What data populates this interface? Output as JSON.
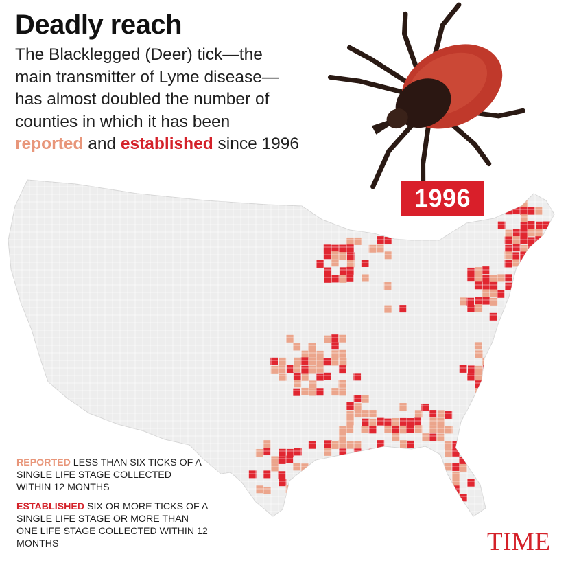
{
  "header": {
    "title": "Deadly reach",
    "subtitle_lines": [
      "The Blacklegged (Deer) tick—the",
      "main transmitter of Lyme disease—",
      "has almost doubled the number of",
      "counties in which it has been"
    ],
    "subtitle_reported": "reported",
    "subtitle_and": " and ",
    "subtitle_established": "established",
    "subtitle_end": " since 1996"
  },
  "map": {
    "year": "1996",
    "region": "Contiguous United States, county-level"
  },
  "legend": {
    "reported": {
      "key": "REPORTED",
      "text": " LESS THAN SIX TICKS OF A SINGLE LIFE STAGE COLLECTED WITHIN 12 MONTHS"
    },
    "established": {
      "key": "ESTABLISHED",
      "text": " SIX OR MORE TICKS OF A SINGLE LIFE STAGE OR MORE THAN ONE LIFE STAGE COLLECTED WITHIN 12 MONTHS"
    }
  },
  "brand": {
    "logo": "TIME"
  },
  "colors": {
    "background": "#ffffff",
    "no_data": "#ededed",
    "reported": "#eba58c",
    "established": "#e02630",
    "badge": "#d91f2a",
    "logo": "#d42129"
  },
  "icons": {
    "tick_illustration": "blacklegged-tick-icon"
  }
}
